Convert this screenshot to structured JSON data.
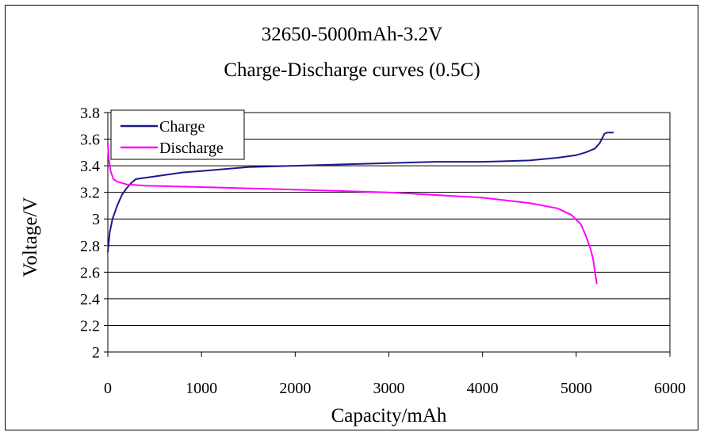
{
  "chart_data": {
    "type": "line",
    "title": "32650-5000mAh-3.2V",
    "subtitle": "Charge-Discharge curves (0.5C)",
    "xlabel": "Capacity/mAh",
    "ylabel": "Voltage/V",
    "xlim": [
      0,
      6000
    ],
    "ylim": [
      2,
      3.8
    ],
    "x_ticks": [
      "0",
      "1000",
      "2000",
      "3000",
      "4000",
      "5000",
      "6000"
    ],
    "y_ticks": [
      "2",
      "2.2",
      "2.4",
      "2.6",
      "2.8",
      "3",
      "3.2",
      "3.4",
      "3.6",
      "3.8"
    ],
    "grid": "horizontal",
    "legend_position": "top-left",
    "series": [
      {
        "name": "Charge",
        "color": "#1a1a8c",
        "x": [
          0,
          20,
          50,
          100,
          150,
          200,
          250,
          300,
          400,
          600,
          800,
          1000,
          1500,
          2000,
          2500,
          3000,
          3500,
          4000,
          4500,
          4800,
          5000,
          5100,
          5200,
          5250,
          5280,
          5300,
          5330,
          5400
        ],
        "y": [
          2.75,
          2.9,
          3.0,
          3.1,
          3.18,
          3.23,
          3.27,
          3.3,
          3.31,
          3.33,
          3.35,
          3.36,
          3.39,
          3.4,
          3.41,
          3.42,
          3.43,
          3.43,
          3.44,
          3.46,
          3.48,
          3.5,
          3.53,
          3.57,
          3.61,
          3.64,
          3.65,
          3.65
        ]
      },
      {
        "name": "Discharge",
        "color": "#ff00ff",
        "x": [
          0,
          10,
          30,
          60,
          100,
          200,
          400,
          1000,
          2000,
          3000,
          3500,
          4000,
          4500,
          4800,
          4950,
          5050,
          5100,
          5150,
          5180,
          5200,
          5220
        ],
        "y": [
          3.57,
          3.45,
          3.36,
          3.3,
          3.28,
          3.26,
          3.25,
          3.24,
          3.22,
          3.2,
          3.18,
          3.16,
          3.12,
          3.08,
          3.03,
          2.96,
          2.88,
          2.78,
          2.7,
          2.6,
          2.51
        ]
      }
    ]
  }
}
